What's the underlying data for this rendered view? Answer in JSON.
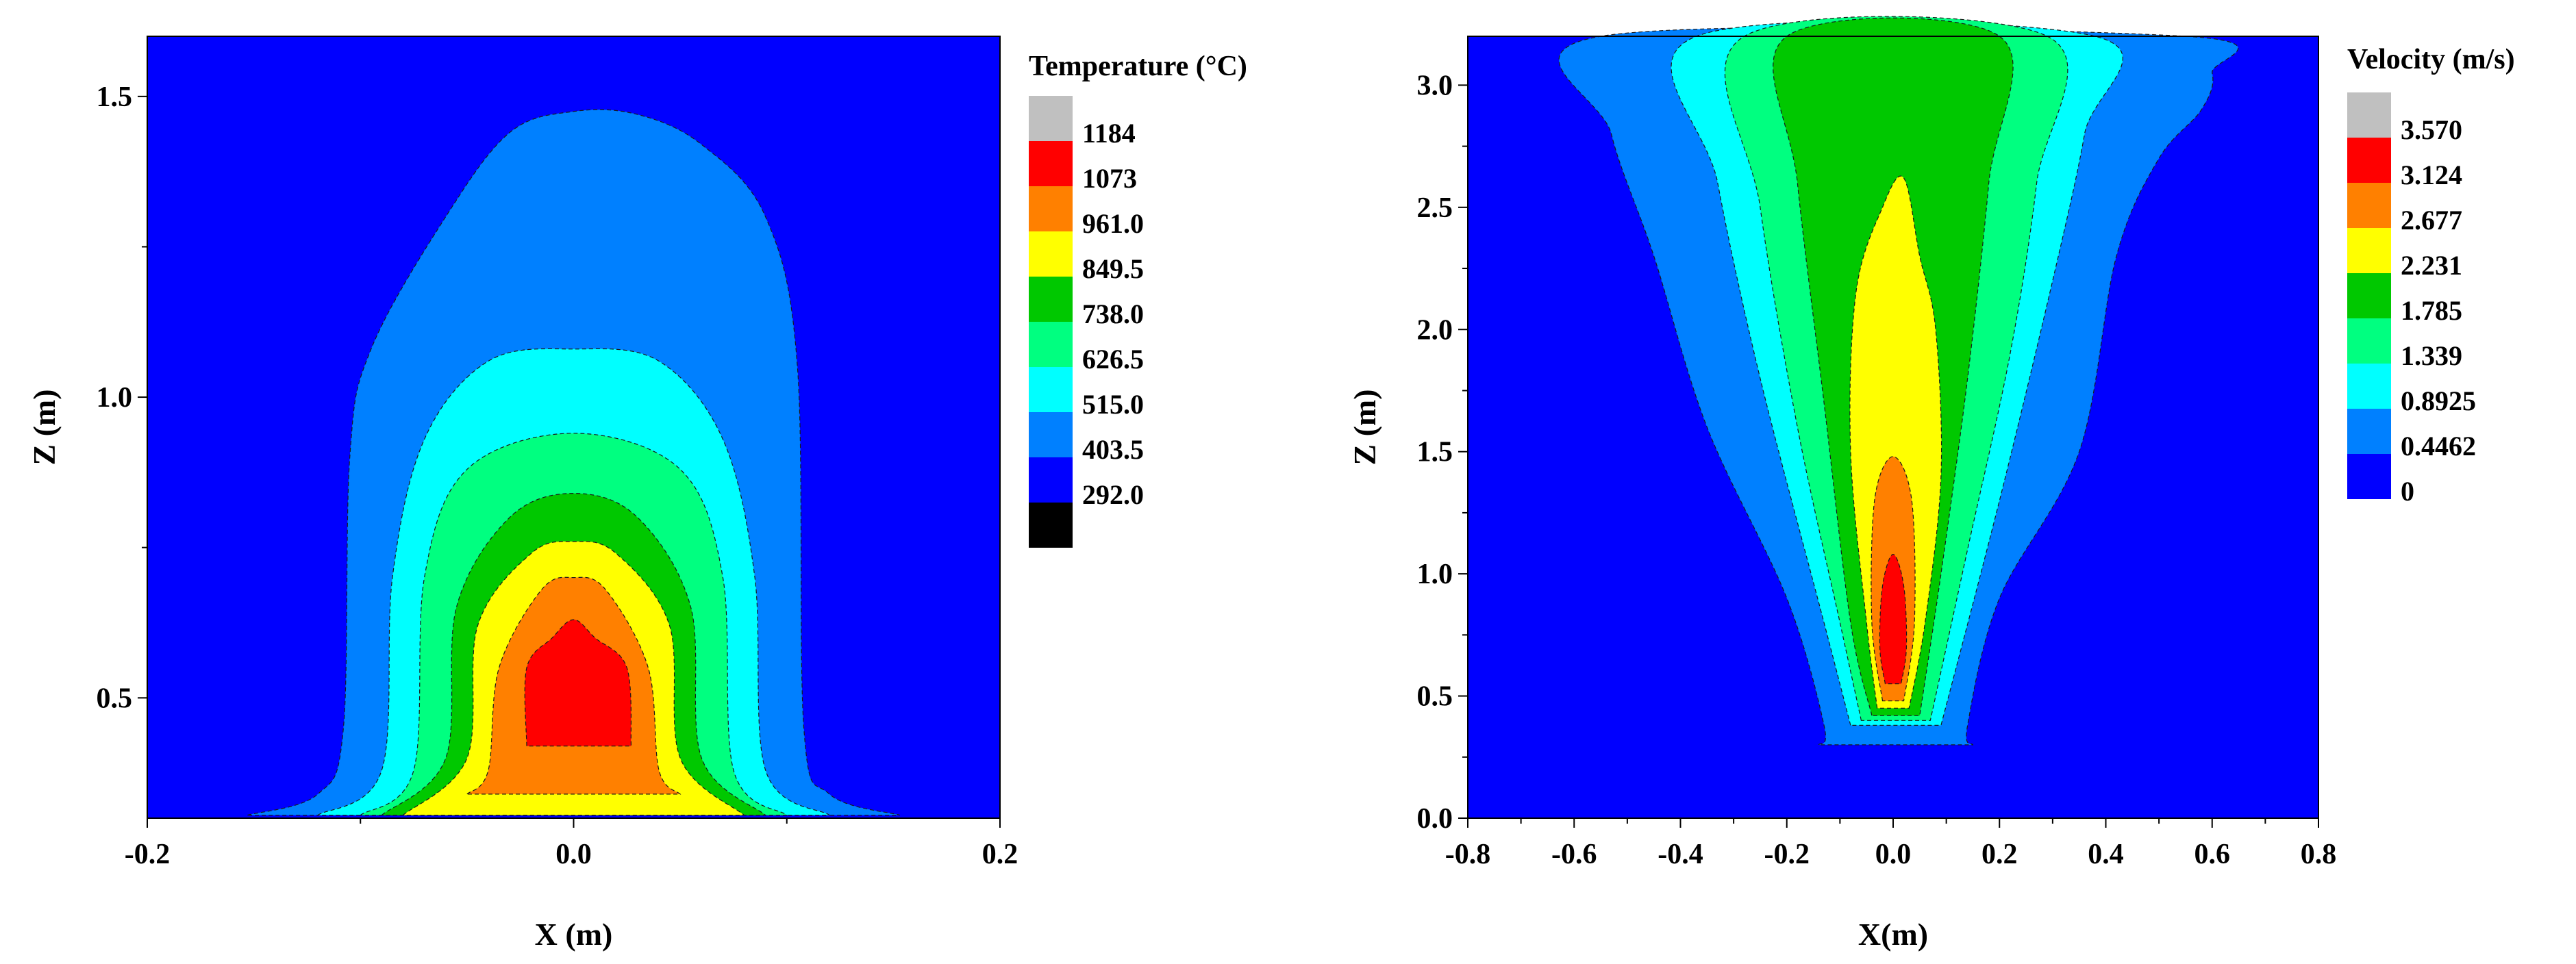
{
  "chart_data": [
    {
      "type": "contour",
      "xlabel": "X (m)",
      "ylabel": "Z (m)",
      "xlim": [
        -0.2,
        0.2
      ],
      "ylim": [
        0.3,
        1.6
      ],
      "x_ticks": [
        -0.2,
        0.0,
        0.2
      ],
      "x_tick_labels": [
        "-0.2",
        "0.0",
        "0.2"
      ],
      "y_ticks": [
        0.5,
        1.0,
        1.5
      ],
      "y_tick_labels": [
        "0.5",
        "1.0",
        "1.5"
      ],
      "legend": {
        "title": "Temperature (°C)",
        "placement": "right",
        "levels": [
          "1184",
          "1073",
          "961.0",
          "849.5",
          "738.0",
          "626.5",
          "515.0",
          "403.5",
          "292.0"
        ],
        "colors": [
          "#c0c0c0",
          "#ff0000",
          "#ff8000",
          "#ffff00",
          "#00c800",
          "#00ff80",
          "#00ffff",
          "#0080ff",
          "#0000ff",
          "#000000"
        ]
      },
      "contours": [
        {
          "level": "403.5",
          "color": "#0080ff",
          "x": [
            -0.153,
            -0.12,
            -0.108,
            -0.105,
            -0.095,
            -0.06,
            -0.03,
            0.0,
            0.03,
            0.06,
            0.09,
            0.105,
            0.108,
            0.12,
            0.153
          ],
          "z": [
            0.305,
            0.34,
            0.45,
            0.9,
            1.08,
            1.3,
            1.44,
            1.475,
            1.47,
            1.42,
            1.3,
            1.05,
            0.45,
            0.34,
            0.305
          ]
        },
        {
          "level": "515.0",
          "color": "#00ffff",
          "x": [
            -0.12,
            -0.09,
            -0.085,
            -0.07,
            -0.04,
            0.0,
            0.04,
            0.07,
            0.085,
            0.09,
            0.12
          ],
          "z": [
            0.305,
            0.38,
            0.7,
            0.93,
            1.06,
            1.08,
            1.06,
            0.93,
            0.7,
            0.38,
            0.305
          ]
        },
        {
          "level": "626.5",
          "color": "#00ff80",
          "x": [
            -0.1,
            -0.075,
            -0.07,
            -0.05,
            0.0,
            0.05,
            0.07,
            0.075,
            0.1
          ],
          "z": [
            0.305,
            0.38,
            0.7,
            0.88,
            0.94,
            0.88,
            0.7,
            0.38,
            0.305
          ]
        },
        {
          "level": "738.0",
          "color": "#00c800",
          "x": [
            -0.09,
            -0.06,
            -0.055,
            -0.03,
            0.0,
            0.03,
            0.055,
            0.06,
            0.09
          ],
          "z": [
            0.305,
            0.4,
            0.65,
            0.8,
            0.84,
            0.8,
            0.65,
            0.4,
            0.305
          ]
        },
        {
          "level": "849.5",
          "color": "#ffff00",
          "x": [
            -0.08,
            -0.05,
            -0.045,
            -0.02,
            0.0,
            0.02,
            0.045,
            0.05,
            0.08
          ],
          "z": [
            0.305,
            0.4,
            0.62,
            0.74,
            0.76,
            0.74,
            0.62,
            0.4,
            0.305
          ]
        },
        {
          "level": "961.0",
          "color": "#ff8000",
          "x": [
            -0.05,
            -0.04,
            -0.035,
            -0.015,
            0.0,
            0.015,
            0.035,
            0.04,
            0.05
          ],
          "z": [
            0.34,
            0.38,
            0.55,
            0.68,
            0.7,
            0.68,
            0.55,
            0.38,
            0.34
          ]
        },
        {
          "level": "1073",
          "color": "#ff0000",
          "x": [
            -0.022,
            -0.022,
            -0.01,
            0.0,
            0.01,
            0.025,
            0.027
          ],
          "z": [
            0.42,
            0.55,
            0.6,
            0.63,
            0.6,
            0.55,
            0.42
          ]
        }
      ]
    },
    {
      "type": "contour",
      "xlabel": "X(m)",
      "ylabel": "Z (m)",
      "xlim": [
        -0.8,
        0.8
      ],
      "ylim": [
        0.0,
        3.2
      ],
      "x_ticks": [
        -0.8,
        -0.6,
        -0.4,
        -0.2,
        0.0,
        0.2,
        0.4,
        0.6,
        0.8
      ],
      "x_tick_labels": [
        "-0.8",
        "-0.6",
        "-0.4",
        "-0.2",
        "0.0",
        "0.2",
        "0.4",
        "0.6",
        "0.8"
      ],
      "y_ticks": [
        0.0,
        0.5,
        1.0,
        1.5,
        2.0,
        2.5,
        3.0
      ],
      "y_tick_labels": [
        "0.0",
        "0.5",
        "1.0",
        "1.5",
        "2.0",
        "2.5",
        "3.0"
      ],
      "legend": {
        "title": "Velocity (m/s)",
        "placement": "right",
        "levels": [
          "3.570",
          "3.124",
          "2.677",
          "2.231",
          "1.785",
          "1.339",
          "0.8925",
          "0.4462",
          "0"
        ],
        "colors": [
          "#c0c0c0",
          "#ff0000",
          "#ff8000",
          "#ffff00",
          "#00c800",
          "#00ff80",
          "#00ffff",
          "#0080ff",
          "#0000ff"
        ]
      },
      "contours": [
        {
          "level": "0.4462",
          "color": "#0080ff",
          "x": [
            -0.14,
            -0.13,
            -0.2,
            -0.35,
            -0.45,
            -0.53,
            -0.55,
            0.55,
            0.6,
            0.58,
            0.5,
            0.42,
            0.35,
            0.2,
            0.14,
            0.15
          ],
          "z": [
            0.3,
            0.38,
            0.9,
            1.6,
            2.3,
            2.8,
            3.2,
            3.2,
            3.05,
            2.9,
            2.7,
            2.3,
            1.5,
            0.9,
            0.38,
            0.3
          ]
        },
        {
          "level": "0.8925",
          "color": "#00ffff",
          "x": [
            -0.08,
            -0.13,
            -0.25,
            -0.33,
            -0.37,
            0.38,
            0.36,
            0.3,
            0.2,
            0.09
          ],
          "z": [
            0.38,
            0.8,
            1.8,
            2.6,
            3.2,
            3.2,
            2.8,
            2.2,
            1.3,
            0.38
          ]
        },
        {
          "level": "1.339",
          "color": "#00ff80",
          "x": [
            -0.06,
            -0.1,
            -0.18,
            -0.25,
            -0.28,
            0.29,
            0.27,
            0.22,
            0.14,
            0.07
          ],
          "z": [
            0.4,
            0.8,
            1.6,
            2.5,
            3.2,
            3.2,
            2.6,
            1.9,
            1.1,
            0.4
          ]
        },
        {
          "level": "1.785",
          "color": "#00c800",
          "x": [
            -0.04,
            -0.08,
            -0.13,
            -0.18,
            -0.2,
            0.2,
            0.18,
            0.14,
            0.09,
            0.05
          ],
          "z": [
            0.42,
            0.8,
            1.7,
            2.6,
            3.2,
            3.2,
            2.6,
            1.8,
            1.0,
            0.42
          ]
        },
        {
          "level": "2.231",
          "color": "#ffff00",
          "x": [
            -0.03,
            -0.05,
            -0.08,
            -0.07,
            -0.02,
            0.02,
            0.05,
            0.08,
            0.09,
            0.06,
            0.03
          ],
          "z": [
            0.45,
            0.8,
            1.5,
            2.15,
            2.5,
            2.62,
            2.3,
            2.0,
            1.4,
            0.8,
            0.45
          ]
        },
        {
          "level": "2.677",
          "color": "#ff8000",
          "x": [
            -0.02,
            -0.04,
            -0.035,
            0.0,
            0.035,
            0.04,
            0.02
          ],
          "z": [
            0.48,
            0.8,
            1.3,
            1.48,
            1.3,
            0.8,
            0.48
          ]
        },
        {
          "level": "3.124",
          "color": "#ff0000",
          "x": [
            -0.015,
            -0.025,
            -0.02,
            0.0,
            0.02,
            0.025,
            0.015
          ],
          "z": [
            0.55,
            0.7,
            0.95,
            1.08,
            0.95,
            0.7,
            0.55
          ]
        }
      ]
    }
  ]
}
